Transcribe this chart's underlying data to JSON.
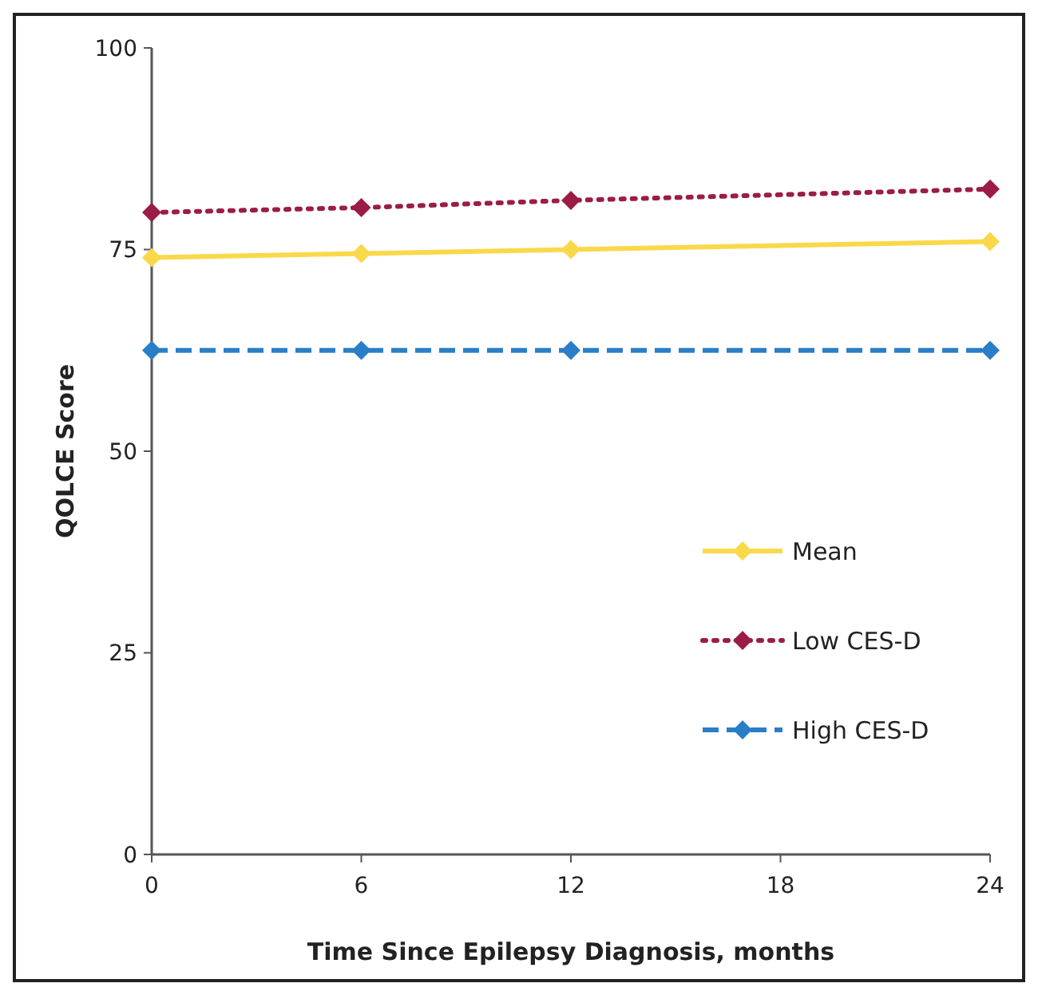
{
  "chart_data": {
    "type": "line",
    "xlabel": "Time Since Epilepsy Diagnosis, months",
    "ylabel": "QOLCE Score",
    "x": [
      0,
      6,
      12,
      24
    ],
    "xlim": [
      0,
      24
    ],
    "xticks": [
      0,
      6,
      12,
      18,
      24
    ],
    "ylim": [
      0,
      100
    ],
    "yticks": [
      0,
      25,
      50,
      75,
      100
    ],
    "grid": false,
    "legend": "bottom right",
    "marker": "diamond",
    "series": [
      {
        "name": "Mean",
        "color": "#f9d94a",
        "values": [
          74,
          74.5,
          75,
          76
        ],
        "line_style": "solid"
      },
      {
        "name": "Low CES-D",
        "color": "#9b1d45",
        "values": [
          79.6,
          80.2,
          81.1,
          82.5
        ],
        "line_style": "dotted"
      },
      {
        "name": "High CES-D",
        "color": "#2a7ec8",
        "values": [
          62.5,
          62.5,
          62.5,
          62.5
        ],
        "line_style": "dashed"
      }
    ]
  }
}
